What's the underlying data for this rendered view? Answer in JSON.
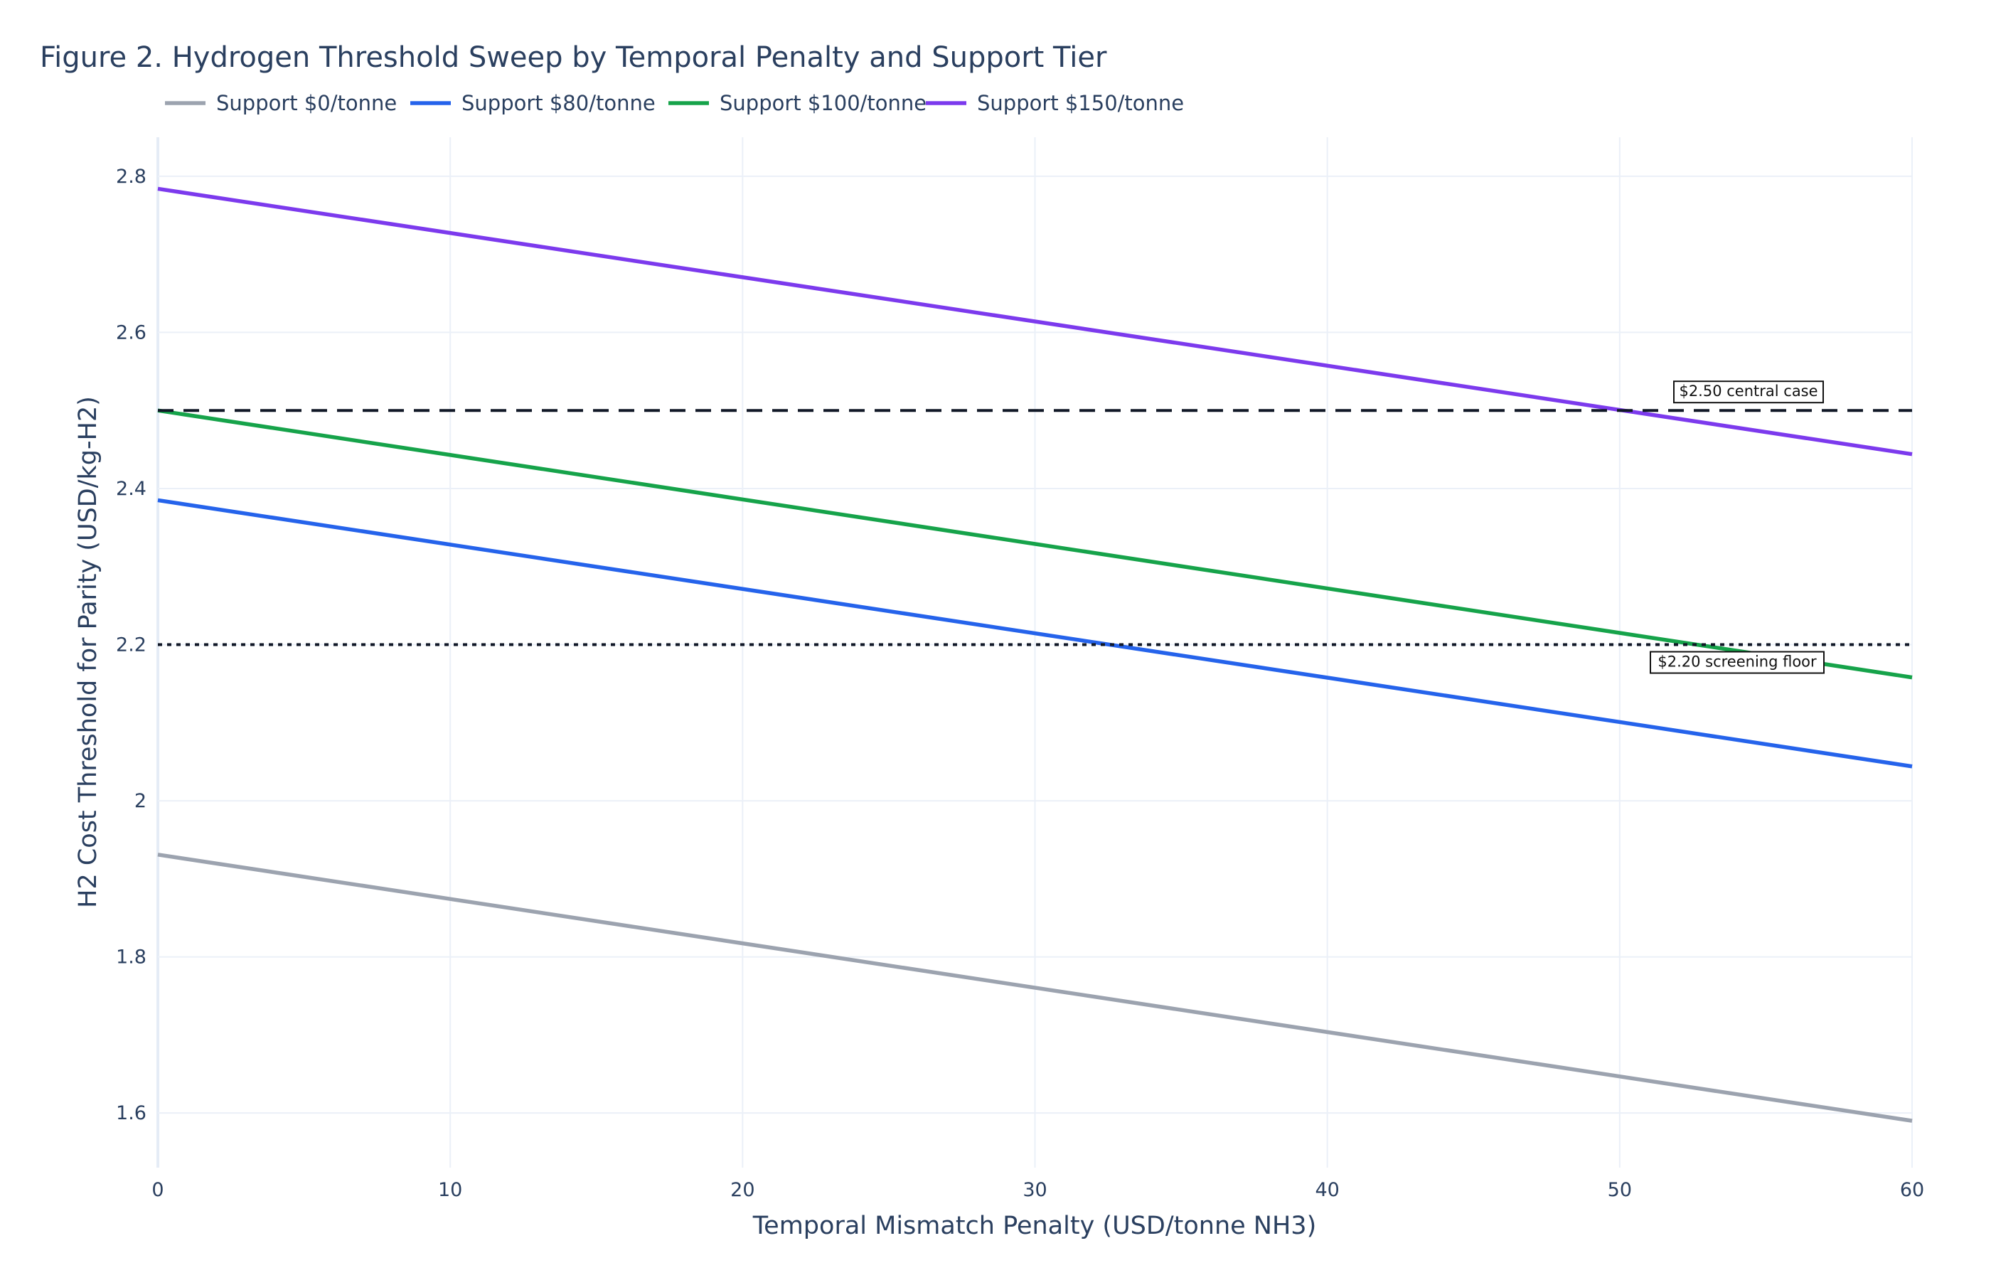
{
  "chart_data": {
    "type": "line",
    "title": "Figure 2. Hydrogen Threshold Sweep by Temporal Penalty and Support Tier",
    "xlabel": "Temporal Mismatch Penalty (USD/tonne NH3)",
    "ylabel": "H2 Cost Threshold for Parity (USD/kg-H2)",
    "xlim": [
      0,
      60
    ],
    "ylim": [
      1.53,
      2.85
    ],
    "xticks": [
      0,
      10,
      20,
      30,
      40,
      50,
      60
    ],
    "yticks": [
      1.6,
      1.8,
      2,
      2.2,
      2.4,
      2.6,
      2.8
    ],
    "ytick_labels": [
      "1.6",
      "1.8",
      "2",
      "2.2",
      "2.4",
      "2.6",
      "2.8"
    ],
    "grid": true,
    "legend_position": "top-left, horizontal",
    "x": [
      0,
      60
    ],
    "series": [
      {
        "name": "Support $0/tonne",
        "color": "#9ca3af",
        "values": [
          1.931,
          1.59
        ]
      },
      {
        "name": "Support $80/tonne",
        "color": "#2563eb",
        "values": [
          2.385,
          2.044
        ]
      },
      {
        "name": "Support $100/tonne",
        "color": "#16a34a",
        "values": [
          2.5,
          2.158
        ]
      },
      {
        "name": "Support $150/tonne",
        "color": "#7c3aed",
        "values": [
          2.784,
          2.444
        ]
      }
    ],
    "reference_lines": [
      {
        "y": 2.5,
        "style": "dashed",
        "color": "#111827",
        "label": "$2.50 central case"
      },
      {
        "y": 2.2,
        "style": "dotted",
        "color": "#111827",
        "label": "$2.20 screening floor"
      }
    ]
  }
}
